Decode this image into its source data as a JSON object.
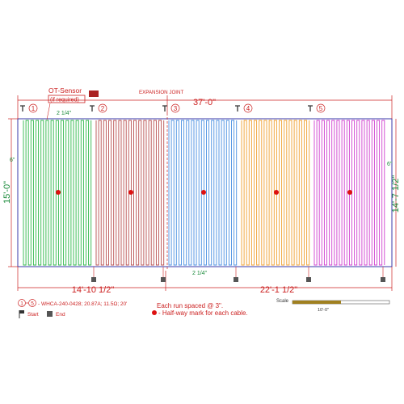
{
  "sensor": {
    "title": "OT-Sensor",
    "note": "(if required)"
  },
  "expansion_joint": "EXPANSION JOINT",
  "dimensions": {
    "overall_width": "37'-0\"",
    "left_height": "15'-0\"",
    "right_height": "14'-7 1/2\"",
    "left_span": "14'-10 1/2\"",
    "right_span": "22'-1 1/2\"",
    "top_offset": "2 1/4\"",
    "bottom_offset": "2 1/4\"",
    "left_margin": "6\"",
    "right_margin": "6\""
  },
  "runs": [
    {
      "number": "1",
      "color": "#2fb84a"
    },
    {
      "number": "2",
      "color": "#b85050"
    },
    {
      "number": "3",
      "color": "#4a90e2"
    },
    {
      "number": "4",
      "color": "#f0a030"
    },
    {
      "number": "5",
      "color": "#d040d0"
    }
  ],
  "legend": {
    "range_start": "1",
    "range_end": "5",
    "cable_spec": "- WHCA-240-0428; 20.87A; 11.5Ω; 20'",
    "start_label": "Start",
    "end_label": "End",
    "spacing_note": "Each run spaced @ 3\".",
    "halfway_note": "- Half-way mark for each cable."
  },
  "scale": {
    "label": "Scale",
    "value": "10'-0\""
  },
  "colors": {
    "dimension": "#cc2222",
    "outline": "#3a3aa8",
    "halfway_dot": "#dd1111",
    "sensor_box": "#aa2222",
    "offset_text": "#1a8a3a"
  }
}
